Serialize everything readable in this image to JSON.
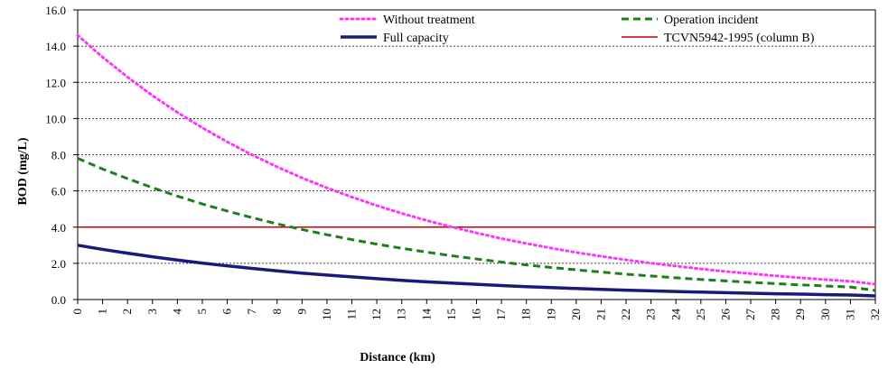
{
  "chart_data": {
    "type": "line",
    "title": "",
    "xlabel": "Distance (km)",
    "ylabel": "BOD (mg/L)",
    "x": [
      0,
      1,
      2,
      3,
      4,
      5,
      6,
      7,
      8,
      9,
      10,
      11,
      12,
      13,
      14,
      15,
      16,
      17,
      18,
      19,
      20,
      21,
      22,
      23,
      24,
      25,
      26,
      27,
      28,
      29,
      30,
      31,
      32
    ],
    "xlim": [
      0,
      32
    ],
    "ylim": [
      0,
      16
    ],
    "yticks": [
      "0.0",
      "2.0",
      "4.0",
      "6.0",
      "8.0",
      "10.0",
      "12.0",
      "14.0",
      "16.0"
    ],
    "xticks": [
      "0",
      "1",
      "2",
      "3",
      "4",
      "5",
      "6",
      "7",
      "8",
      "9",
      "10",
      "11",
      "12",
      "13",
      "14",
      "15",
      "16",
      "17",
      "18",
      "19",
      "20",
      "21",
      "22",
      "23",
      "24",
      "25",
      "26",
      "27",
      "28",
      "29",
      "30",
      "31",
      "32"
    ],
    "grid": "horizontal dashed",
    "legend_position": "top",
    "series": [
      {
        "name": "Without treatment",
        "color": "#ff33ff",
        "style": "dotted",
        "values": [
          14.6,
          13.39,
          12.29,
          11.27,
          10.34,
          9.49,
          8.71,
          7.99,
          7.33,
          6.72,
          6.17,
          5.66,
          5.19,
          4.76,
          4.37,
          4.01,
          3.68,
          3.37,
          3.1,
          2.84,
          2.6,
          2.39,
          2.19,
          2.01,
          1.85,
          1.69,
          1.55,
          1.43,
          1.31,
          1.2,
          1.1,
          1.01,
          0.85
        ]
      },
      {
        "name": "Operation incident",
        "color": "#1e7d1e",
        "style": "dashed",
        "values": [
          7.8,
          7.21,
          6.68,
          6.18,
          5.71,
          5.28,
          4.89,
          4.52,
          4.18,
          3.87,
          3.58,
          3.31,
          3.06,
          2.83,
          2.62,
          2.42,
          2.24,
          2.07,
          1.91,
          1.77,
          1.64,
          1.52,
          1.4,
          1.3,
          1.2,
          1.11,
          1.03,
          0.95,
          0.88,
          0.81,
          0.75,
          0.69,
          0.5
        ]
      },
      {
        "name": "Full capacity",
        "color": "#1a1a7a",
        "style": "solid-thick",
        "values": [
          3.0,
          2.77,
          2.56,
          2.36,
          2.18,
          2.01,
          1.86,
          1.72,
          1.58,
          1.46,
          1.35,
          1.25,
          1.15,
          1.06,
          0.98,
          0.91,
          0.84,
          0.77,
          0.71,
          0.66,
          0.61,
          0.56,
          0.52,
          0.48,
          0.44,
          0.41,
          0.38,
          0.35,
          0.32,
          0.3,
          0.27,
          0.25,
          0.2
        ]
      },
      {
        "name": "TCVN5942-1995 (column B)",
        "color": "#cc0000",
        "style": "solid",
        "values": [
          4,
          4,
          4,
          4,
          4,
          4,
          4,
          4,
          4,
          4,
          4,
          4,
          4,
          4,
          4,
          4,
          4,
          4,
          4,
          4,
          4,
          4,
          4,
          4,
          4,
          4,
          4,
          4,
          4,
          4,
          4,
          4,
          4
        ]
      }
    ]
  }
}
